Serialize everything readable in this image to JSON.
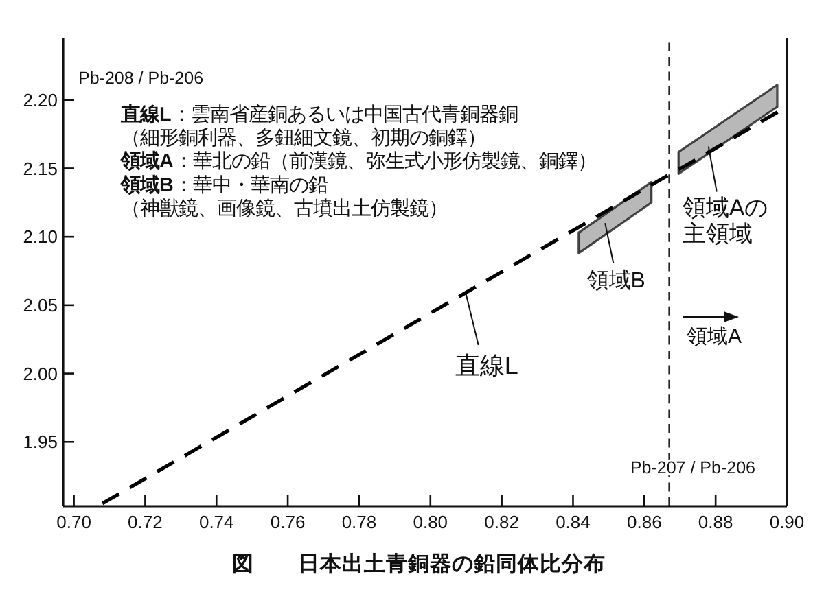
{
  "chart_data": {
    "type": "line",
    "title": "図　　日本出土青銅器の鉛同体比分布",
    "xlabel": "Pb-207 / Pb-206",
    "ylabel": "Pb-208 / Pb-206",
    "xlim": [
      0.697,
      0.9
    ],
    "ylim": [
      1.903,
      2.245
    ],
    "xticks": [
      {
        "value": 0.7,
        "label": "0.70"
      },
      0.72,
      0.74,
      0.76,
      0.78,
      {
        "value": 0.8,
        "label": "0.80"
      },
      0.82,
      0.84,
      0.86,
      0.88,
      {
        "value": 0.9,
        "label": "0.90"
      }
    ],
    "yticks": [
      1.95,
      {
        "value": 2.0,
        "label": "2.00"
      },
      2.05,
      {
        "value": 2.1,
        "label": "2.10"
      },
      2.15,
      {
        "value": 2.2,
        "label": "2.20"
      }
    ],
    "line_style": "dashed",
    "series": [
      {
        "color": "#000000",
        "x": [
          0.708,
          0.8416,
          0.862,
          0.866,
          0.8696,
          0.8973,
          0.9
        ],
        "values": [
          1.905,
          2.107,
          2.138,
          2.144,
          2.149,
          2.191,
          2.195
        ],
        "lower": [
          null,
          2.088,
          2.125,
          null,
          2.146,
          2.195,
          null
        ],
        "upper": [
          null,
          2.103,
          2.14,
          null,
          2.162,
          2.211,
          null
        ]
      }
    ],
    "ref_lines": [
      {
        "axis": "x",
        "value": 0.867,
        "line_style": "dashed",
        "color": "#000000"
      }
    ],
    "annotations": [
      "直線L：雲南省産銅あるいは中国古代青銅器銅",
      "（細形銅利器、多鈕細文鏡、初期の銅鐸）",
      "領域A：華北の鉛（前漢鏡、弥生式小形仿製鏡、銅鐸）",
      "領域B：華中・華南の鉛",
      "（神獣鏡、画像鏡、古墳出土仿製鏡）",
      {
        "text": "直線L",
        "x": 0.81,
        "y": 2.058
      },
      {
        "text": "領域B",
        "x": 0.849,
        "y": 2.11
      },
      {
        "text": "領域Aの主領域",
        "x": 0.878,
        "y": 2.166
      },
      "領域A"
    ]
  }
}
